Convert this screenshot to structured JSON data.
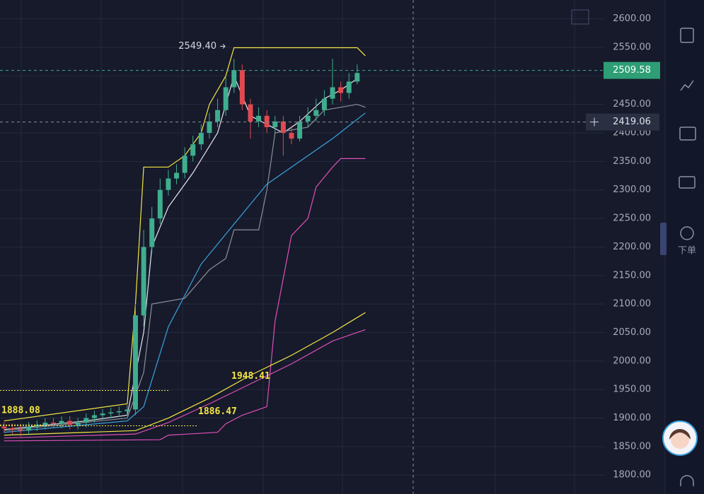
{
  "chart_data": {
    "type": "candlestick",
    "ylim": [
      1778,
      2633
    ],
    "xlim": [
      -0.5,
      80.5
    ],
    "yticks": [
      {
        "value": 2600,
        "label": "2600.00"
      },
      {
        "value": 2550,
        "label": "2550.00"
      },
      {
        "value": 2500,
        "label": "2500.00"
      },
      {
        "value": 2450,
        "label": "2450.00"
      },
      {
        "value": 2400,
        "label": "2400.00"
      },
      {
        "value": 2350,
        "label": "2350.00"
      },
      {
        "value": 2300,
        "label": "2300.00"
      },
      {
        "value": 2250,
        "label": "2250.00"
      },
      {
        "value": 2200,
        "label": "2200.00"
      },
      {
        "value": 2150,
        "label": "2150.00"
      },
      {
        "value": 2100,
        "label": "2100.00"
      },
      {
        "value": 2050,
        "label": "2050.00"
      },
      {
        "value": 2000,
        "label": "2000.00"
      },
      {
        "value": 1950,
        "label": "1950.00"
      },
      {
        "value": 1900,
        "label": "1900.00"
      },
      {
        "value": 1850,
        "label": "1850.00"
      },
      {
        "value": 1800,
        "label": "1800.00"
      }
    ],
    "grid": true,
    "up_color": "#3fae8e",
    "down_color": "#e04a4f",
    "open": [
      1885,
      1882,
      1880,
      1878,
      1885,
      1888,
      1892,
      1890,
      1895,
      1888,
      1892,
      1900,
      1905,
      1908,
      1910,
      1912,
      1915,
      2080,
      2200,
      2250,
      2300,
      2320,
      2330,
      2360,
      2380,
      2400,
      2420,
      2440,
      2480,
      2510,
      2450,
      2420,
      2430,
      2410,
      2420,
      2400,
      2390,
      2420,
      2430,
      2440,
      2460,
      2480,
      2470,
      2490
    ],
    "high": [
      1893,
      1890,
      1888,
      1893,
      1896,
      1900,
      1900,
      1903,
      1903,
      1900,
      1908,
      1913,
      1916,
      1918,
      1920,
      1923,
      2100,
      2230,
      2270,
      2320,
      2335,
      2345,
      2375,
      2395,
      2415,
      2435,
      2460,
      2500,
      2530,
      2520,
      2460,
      2445,
      2440,
      2430,
      2430,
      2410,
      2430,
      2445,
      2460,
      2475,
      2530,
      2490,
      2505,
      2520
    ],
    "low": [
      1874,
      1872,
      1868,
      1870,
      1877,
      1880,
      1882,
      1882,
      1880,
      1880,
      1884,
      1892,
      1897,
      1900,
      1902,
      1904,
      1905,
      2060,
      2190,
      2240,
      2290,
      2310,
      2320,
      2350,
      2370,
      2390,
      2410,
      2430,
      2470,
      2440,
      2390,
      2410,
      2400,
      2400,
      2360,
      2380,
      2385,
      2410,
      2420,
      2430,
      2450,
      2455,
      2460,
      2485
    ],
    "close": [
      1882,
      1880,
      1878,
      1885,
      1888,
      1892,
      1890,
      1895,
      1888,
      1892,
      1900,
      1905,
      1908,
      1910,
      1912,
      1915,
      2080,
      2200,
      2250,
      2300,
      2320,
      2330,
      2360,
      2380,
      2400,
      2420,
      2440,
      2480,
      2510,
      2450,
      2420,
      2430,
      2410,
      2420,
      2400,
      2390,
      2420,
      2430,
      2440,
      2460,
      2480,
      2470,
      2490,
      2505
    ],
    "series": [
      {
        "color": "#f5e642",
        "x": [
          0,
          15,
          16,
          17,
          20,
          22,
          24,
          25,
          27,
          28,
          43,
          44
        ],
        "values": [
          1895,
          1925,
          2100,
          2340,
          2340,
          2360,
          2400,
          2450,
          2500,
          2549.4,
          2549.4,
          2535
        ]
      },
      {
        "color": "#e8e8ee",
        "x": [
          0,
          10,
          15,
          17,
          18,
          20,
          23,
          26,
          28,
          30,
          32,
          34,
          36,
          39,
          41,
          43
        ],
        "values": [
          1880,
          1895,
          1905,
          2050,
          2200,
          2270,
          2330,
          2400,
          2500,
          2430,
          2415,
          2400,
          2420,
          2460,
          2475,
          2495
        ]
      },
      {
        "color": "#8c8f99",
        "x": [
          0,
          15,
          17,
          18,
          22,
          25,
          27,
          28,
          31,
          32,
          33,
          37,
          39,
          43,
          44
        ],
        "values": [
          1878,
          1900,
          1980,
          2100,
          2110,
          2160,
          2180,
          2230,
          2230,
          2300,
          2400,
          2410,
          2440,
          2450,
          2445
        ]
      },
      {
        "color": "#3ba4e0",
        "x": [
          0,
          15,
          17,
          20,
          24,
          28,
          32,
          36,
          40,
          44
        ],
        "values": [
          1875,
          1895,
          1920,
          2060,
          2170,
          2240,
          2310,
          2350,
          2390,
          2435
        ]
      },
      {
        "color": "#e04fb8",
        "x": [
          0,
          19,
          20,
          26,
          27,
          29,
          32,
          33,
          35,
          37,
          38,
          40,
          41,
          44
        ],
        "values": [
          1860,
          1862,
          1870,
          1875,
          1890,
          1905,
          1920,
          2070,
          2220,
          2250,
          2305,
          2340,
          2355,
          2355
        ]
      },
      {
        "color": "#f5e642",
        "x": [
          0,
          16,
          20,
          25,
          30,
          35,
          40,
          44
        ],
        "values": [
          1870,
          1878,
          1900,
          1935,
          1975,
          2010,
          2050,
          2085
        ]
      },
      {
        "color": "#e04fb8",
        "x": [
          0,
          16,
          20,
          25,
          30,
          35,
          40,
          44
        ],
        "values": [
          1865,
          1872,
          1892,
          1925,
          1960,
          1995,
          2035,
          2055
        ]
      }
    ],
    "high_marker": {
      "value": 2549.4,
      "label": "2549.40"
    },
    "levels": [
      1948.41,
      1886.47,
      1888.08
    ],
    "last_price": 2509.58,
    "crosshair_price": 2419.06
  },
  "sidebar": {
    "order_label": "下单"
  }
}
